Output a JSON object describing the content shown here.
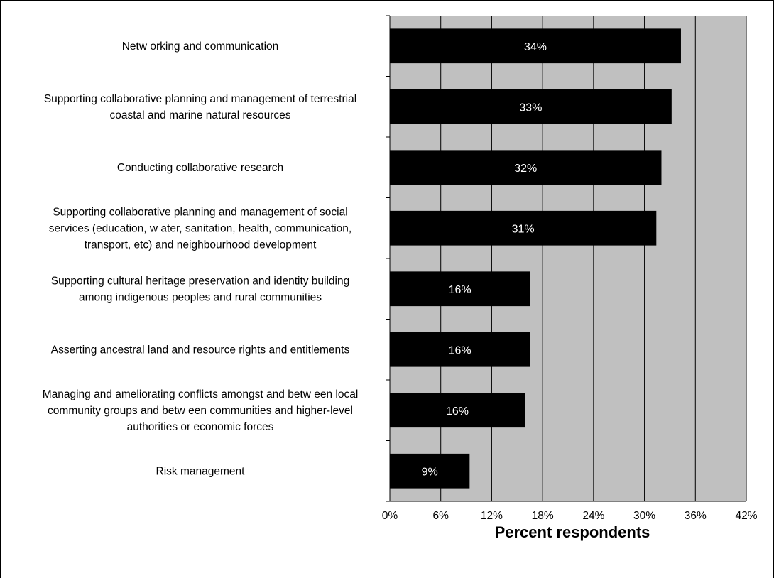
{
  "chart_data": {
    "type": "bar",
    "orientation": "horizontal",
    "categories": [
      "Netw orking and communication",
      "Supporting collaborative planning and management of terrestrial coastal and marine natural resources",
      "Conducting collaborative research",
      "Supporting collaborative planning and management of social services (education, w ater, sanitation, health, communication, transport, etc) and neighbourhood development",
      "Supporting cultural heritage preservation and identity building among indigenous peoples and rural communities",
      "Asserting ancestral land and resource rights and entitlements",
      "Managing and ameliorating conflicts amongst and betw een local community groups  and betw een communities and higher-level authorities or economic forces",
      "Risk management"
    ],
    "category_lines": [
      [
        "Netw orking and communication"
      ],
      [
        "Supporting collaborative planning and management of terrestrial",
        "coastal and marine natural resources"
      ],
      [
        "Conducting collaborative research"
      ],
      [
        "Supporting collaborative planning and management of social",
        "services (education, w ater, sanitation, health, communication,",
        "transport, etc) and neighbourhood development"
      ],
      [
        "Supporting cultural heritage preservation and identity building",
        "among indigenous peoples and rural communities"
      ],
      [
        "Asserting ancestral land and resource rights and entitlements"
      ],
      [
        "Managing and ameliorating conflicts amongst and betw een local",
        "community groups  and betw een communities and higher-level",
        "authorities or economic forces"
      ],
      [
        "Risk management"
      ]
    ],
    "values": [
      34.3,
      33.2,
      32.0,
      31.4,
      16.5,
      16.5,
      15.9,
      9.4
    ],
    "value_labels": [
      "34%",
      "33%",
      "32%",
      "31%",
      "16%",
      "16%",
      "16%",
      "9%"
    ],
    "xlabel": "Percent respondents",
    "xlim": [
      0,
      42
    ],
    "xticks": [
      0,
      6,
      12,
      18,
      24,
      30,
      36,
      42
    ],
    "xtick_labels": [
      "0%",
      "6%",
      "12%",
      "18%",
      "24%",
      "30%",
      "36%",
      "42%"
    ],
    "grid": true,
    "legend": "none"
  },
  "colors": {
    "plot_background": "#c0c0c0",
    "bar": "#000000",
    "bar_label": "#ffffff",
    "gridline": "#000000",
    "frame": "#000000"
  }
}
